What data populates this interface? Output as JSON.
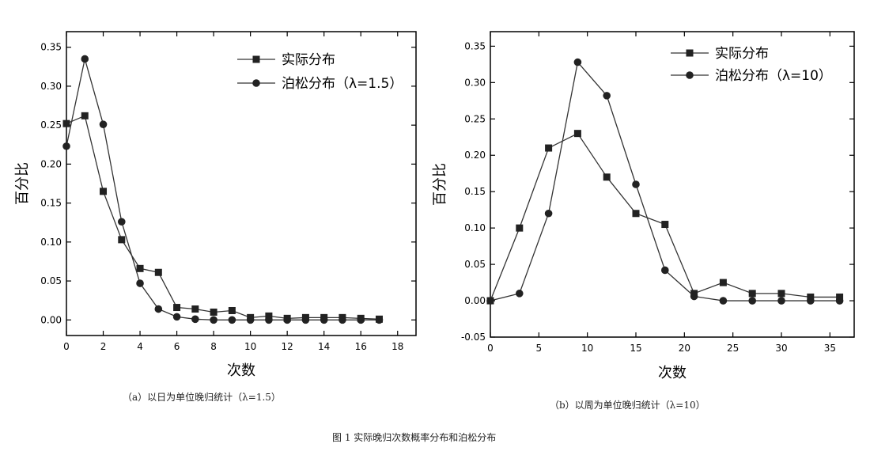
{
  "figure_caption": "图 1 实际晚归次数概率分布和泊松分布",
  "chart_data": [
    {
      "type": "line",
      "caption": "（a）以日为单位晚归统计（λ=1.5）",
      "xlabel": "次数",
      "ylabel": "百分比",
      "xlim": [
        0,
        19
      ],
      "ylim": [
        -0.02,
        0.37
      ],
      "xticks": [
        "0",
        "2",
        "4",
        "6",
        "8",
        "10",
        "12",
        "14",
        "16",
        "18"
      ],
      "yticks": [
        "0.00",
        "0.05",
        "0.10",
        "0.15",
        "0.20",
        "0.25",
        "0.30",
        "0.35"
      ],
      "legend_position": "top-right",
      "series": [
        {
          "name": "实际分布",
          "marker": "square",
          "x": [
            0,
            1,
            2,
            3,
            4,
            5,
            6,
            7,
            8,
            9,
            10,
            11,
            12,
            13,
            14,
            15,
            16,
            17
          ],
          "values": [
            0.252,
            0.262,
            0.165,
            0.103,
            0.066,
            0.061,
            0.016,
            0.014,
            0.01,
            0.012,
            0.003,
            0.005,
            0.002,
            0.003,
            0.003,
            0.003,
            0.002,
            0.001
          ]
        },
        {
          "name": "泊松分布（λ=1.5）",
          "marker": "circle",
          "x": [
            0,
            1,
            2,
            3,
            4,
            5,
            6,
            7,
            8,
            9,
            10,
            11,
            12,
            13,
            14,
            15,
            16,
            17
          ],
          "values": [
            0.223,
            0.335,
            0.251,
            0.126,
            0.047,
            0.014,
            0.004,
            0.001,
            0.0,
            0.0,
            0.0,
            0.0,
            0.0,
            0.0,
            0.0,
            0.0,
            0.0,
            0.0
          ]
        }
      ]
    },
    {
      "type": "line",
      "caption": "（b）以周为单位晚归统计（λ=10）",
      "xlabel": "次数",
      "ylabel": "百分比",
      "xlim": [
        0,
        37.5
      ],
      "ylim": [
        -0.05,
        0.37
      ],
      "xticks": [
        "0",
        "5",
        "10",
        "15",
        "20",
        "25",
        "30",
        "35"
      ],
      "yticks": [
        "-0.05",
        "0.00",
        "0.05",
        "0.10",
        "0.15",
        "0.20",
        "0.25",
        "0.30",
        "0.35"
      ],
      "legend_position": "top-right",
      "series": [
        {
          "name": "实际分布",
          "marker": "square",
          "x": [
            0,
            3,
            6,
            9,
            12,
            15,
            18,
            21,
            24,
            27,
            30,
            33,
            36
          ],
          "values": [
            0.0,
            0.1,
            0.21,
            0.23,
            0.17,
            0.12,
            0.105,
            0.01,
            0.025,
            0.01,
            0.01,
            0.005,
            0.005
          ]
        },
        {
          "name": "泊松分布（λ=10）",
          "marker": "circle",
          "x": [
            0,
            3,
            6,
            9,
            12,
            15,
            18,
            21,
            24,
            27,
            30,
            33,
            36
          ],
          "values": [
            0.0,
            0.01,
            0.12,
            0.328,
            0.282,
            0.16,
            0.042,
            0.006,
            0.0,
            0.0,
            0.0,
            0.0,
            0.0
          ]
        }
      ]
    }
  ]
}
